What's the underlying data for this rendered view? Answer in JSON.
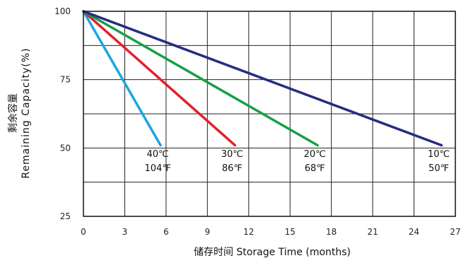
{
  "chart_data": {
    "type": "line",
    "title": "",
    "xlabel": "储存时间 Storage Time (months)",
    "ylabel_cn": "剩余容量",
    "ylabel": "Remaining Capacity(%)",
    "xlim": [
      0,
      27
    ],
    "ylim": [
      25,
      100
    ],
    "x_ticks": [
      0,
      3,
      6,
      9,
      12,
      15,
      18,
      21,
      24,
      27
    ],
    "y_ticks": [
      25,
      50,
      75,
      100
    ],
    "x_tick_labels": [
      "0",
      "3",
      "6",
      "9",
      "12",
      "15",
      "18",
      "21",
      "24",
      "27"
    ],
    "y_tick_labels": [
      "25",
      "50",
      "75",
      "100"
    ],
    "grid": true,
    "series": [
      {
        "name": "40℃ 104℉",
        "label_c": "40℃",
        "label_f": "104℉",
        "color": "#1ba6e0",
        "x": [
          0,
          5.6
        ],
        "y": [
          100,
          51
        ]
      },
      {
        "name": "30℃ 86℉",
        "label_c": "30℃",
        "label_f": "86℉",
        "color": "#e3202a",
        "x": [
          0,
          11
        ],
        "y": [
          100,
          51
        ]
      },
      {
        "name": "20℃ 68℉",
        "label_c": "20℃",
        "label_f": "68℉",
        "color": "#16a047",
        "x": [
          0,
          17
        ],
        "y": [
          100,
          51
        ]
      },
      {
        "name": "10℃ 50℉",
        "label_c": "10℃",
        "label_f": "50℉",
        "color": "#232d83",
        "x": [
          0,
          26
        ],
        "y": [
          100,
          51
        ]
      }
    ]
  }
}
